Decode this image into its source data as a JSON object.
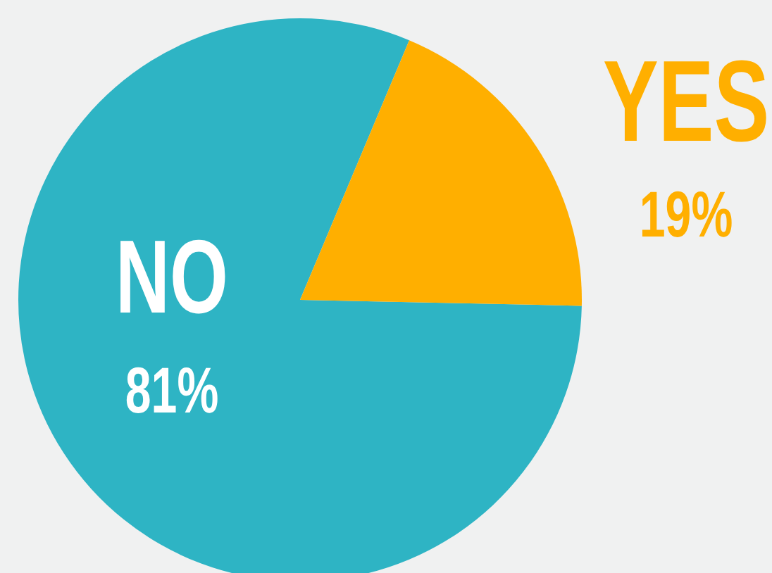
{
  "chart_data": {
    "type": "pie",
    "categories": [
      "NO",
      "YES"
    ],
    "values": [
      81,
      19
    ],
    "colors": [
      "#2eb4c4",
      "#ffaf00"
    ],
    "value_labels": [
      "81%",
      "19%"
    ],
    "legend": false
  }
}
